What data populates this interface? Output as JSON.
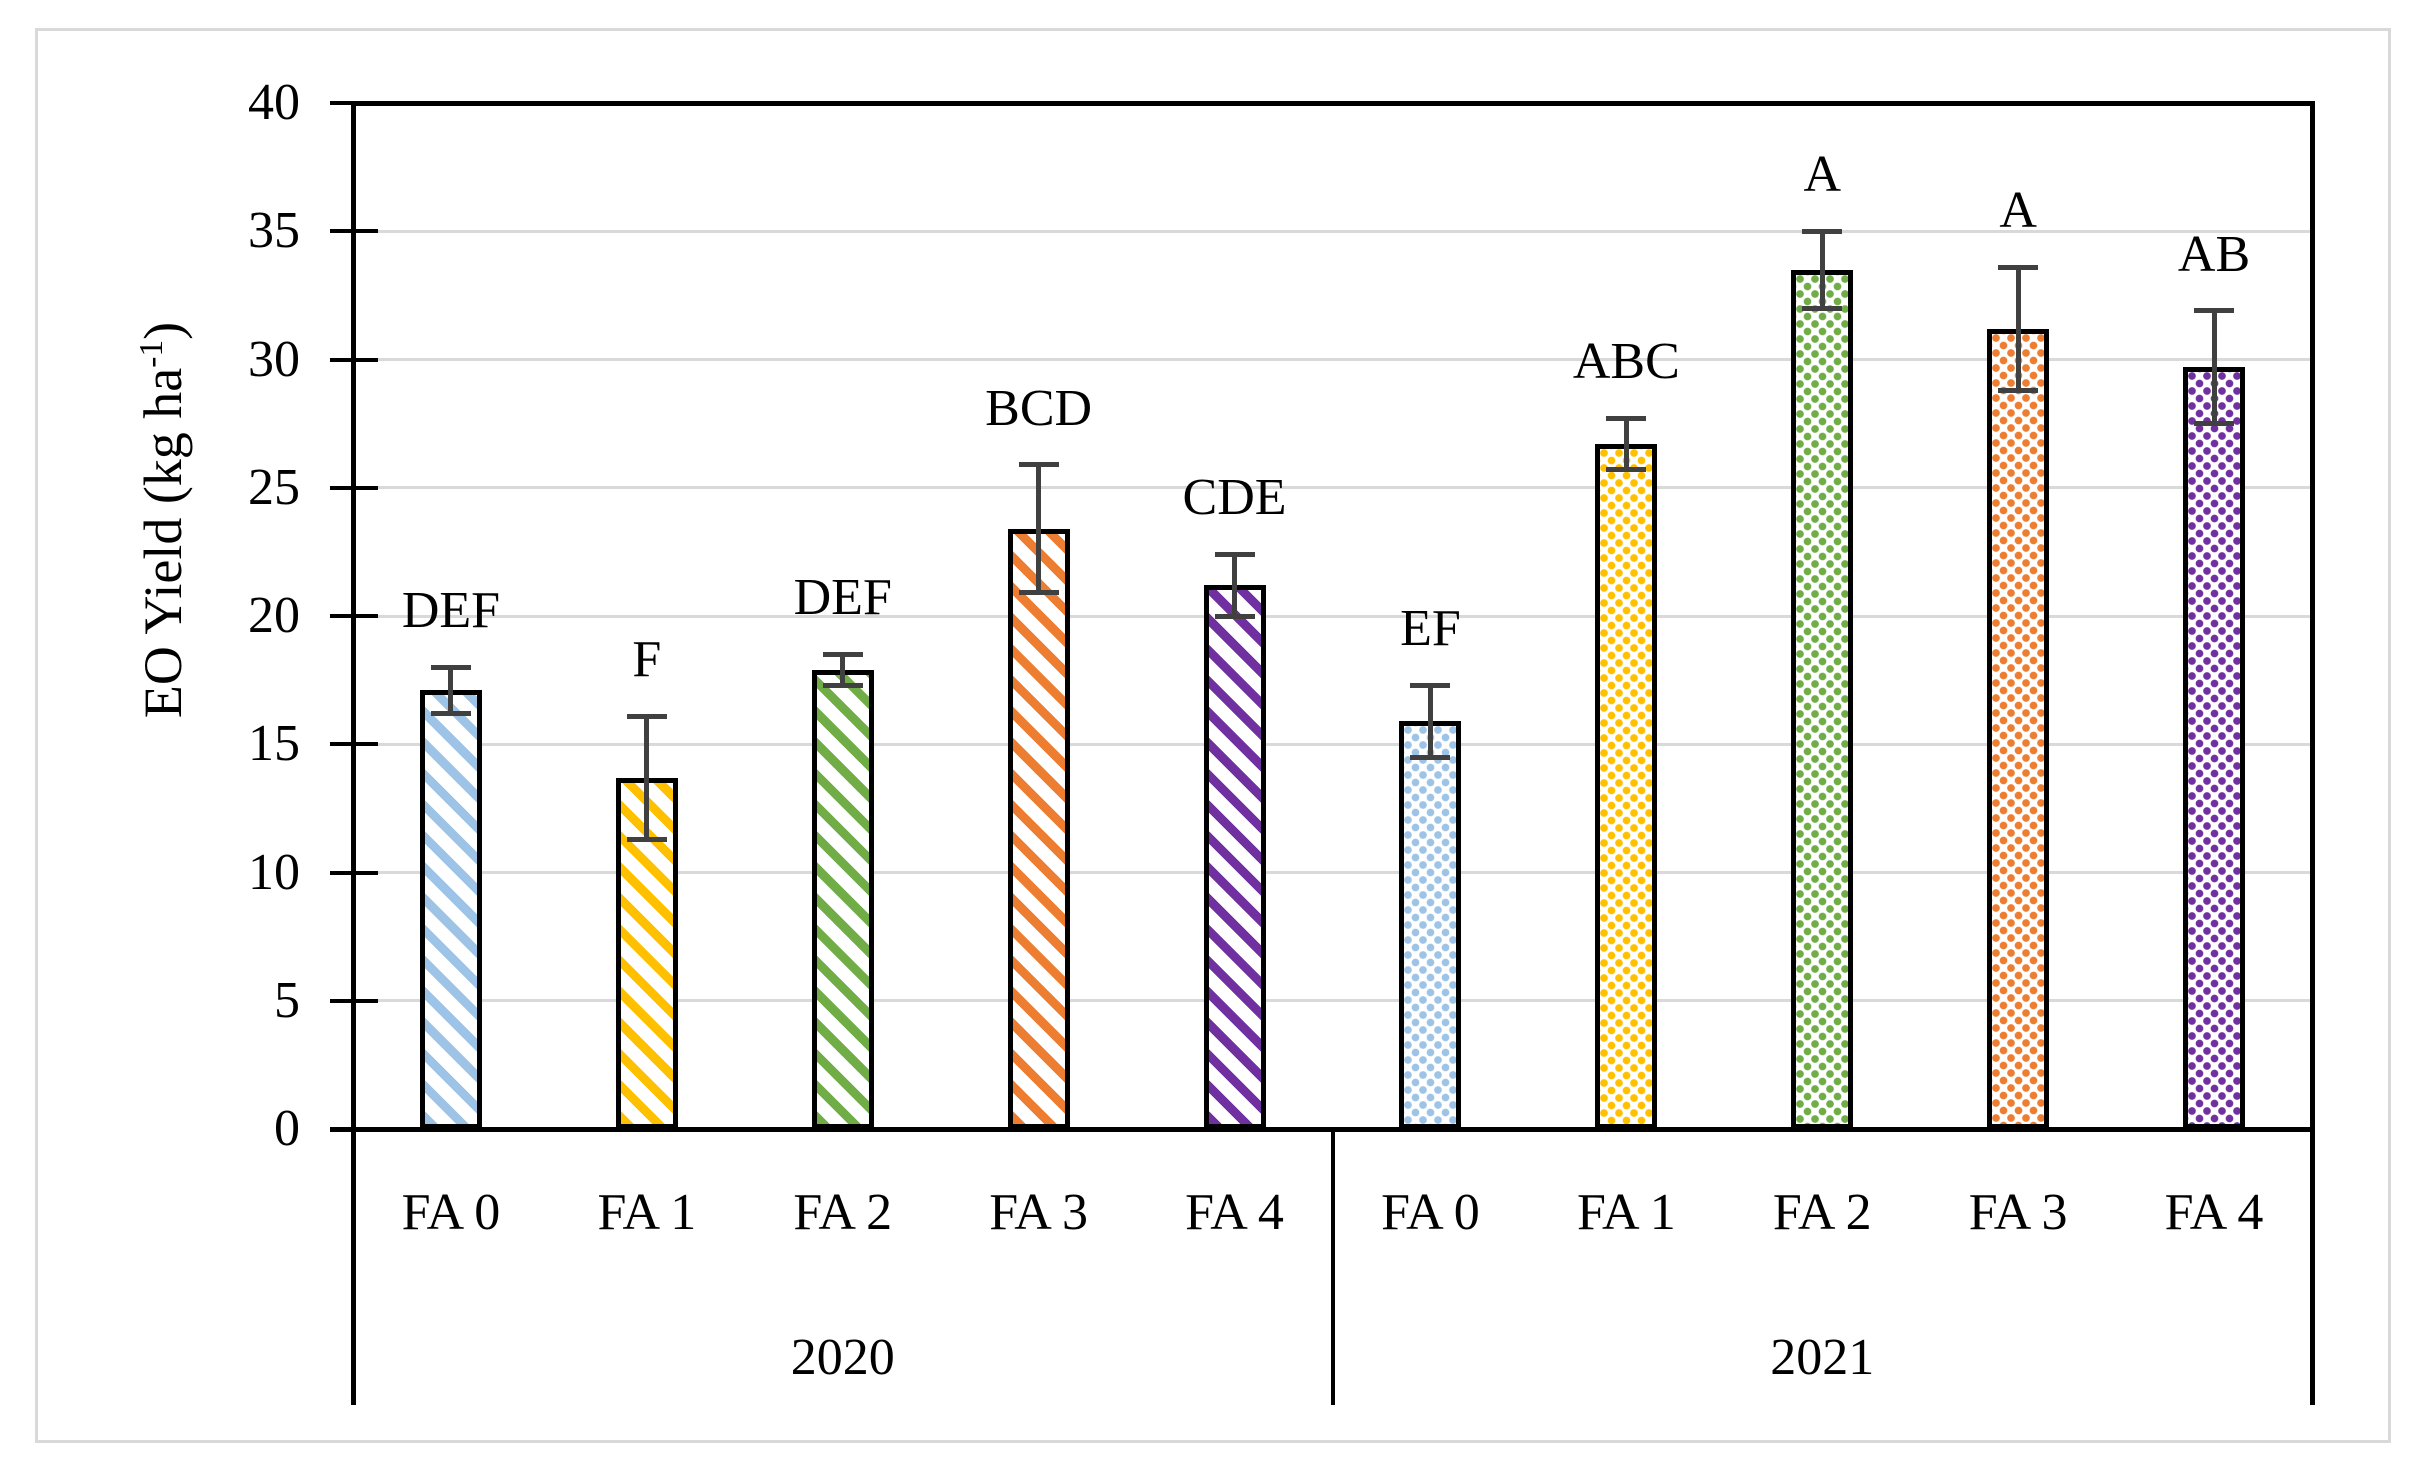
{
  "figure": {
    "background": "#ffffff",
    "border_color": "#d9d9d9"
  },
  "chart_data": {
    "type": "bar",
    "title": "",
    "xlabel": "",
    "ylabel": "EO Yield (kg ha-1)",
    "ylabel_parts": {
      "prefix": "EO Yield (kg ha",
      "superscript": "-1",
      "suffix": ")"
    },
    "ylim": [
      0,
      40
    ],
    "ytick_step": 5,
    "ytick_labels": [
      "0",
      "5",
      "10",
      "15",
      "20",
      "25",
      "30",
      "35",
      "40"
    ],
    "grid": true,
    "legend": "none",
    "gridline_color": "#d9d9d9",
    "axis_color": "#000000",
    "error_bar_color": "#404040",
    "bar_outline_color": "#000000",
    "categories": [
      "FA 0",
      "FA 1",
      "FA 2",
      "FA 3",
      "FA 4"
    ],
    "series_colors": [
      "#9dc3e6",
      "#ffc000",
      "#70ad47",
      "#ed7d31",
      "#7030a0"
    ],
    "groups": [
      {
        "label": "2020",
        "pattern": "diagonal-stripes",
        "bars": [
          {
            "category": "FA 0",
            "value": 17.1,
            "error": 0.9,
            "letter": "DEF",
            "color": "#9dc3e6"
          },
          {
            "category": "FA 1",
            "value": 13.7,
            "error": 2.4,
            "letter": "F",
            "color": "#ffc000"
          },
          {
            "category": "FA 2",
            "value": 17.9,
            "error": 0.6,
            "letter": "DEF",
            "color": "#70ad47"
          },
          {
            "category": "FA 3",
            "value": 23.4,
            "error": 2.5,
            "letter": "BCD",
            "color": "#ed7d31"
          },
          {
            "category": "FA 4",
            "value": 21.2,
            "error": 1.2,
            "letter": "CDE",
            "color": "#7030a0"
          }
        ]
      },
      {
        "label": "2021",
        "pattern": "dots",
        "bars": [
          {
            "category": "FA 0",
            "value": 15.9,
            "error": 1.4,
            "letter": "EF",
            "color": "#9dc3e6"
          },
          {
            "category": "FA 1",
            "value": 26.7,
            "error": 1.0,
            "letter": "ABC",
            "color": "#ffc000"
          },
          {
            "category": "FA 2",
            "value": 33.5,
            "error": 1.5,
            "letter": "A",
            "color": "#70ad47"
          },
          {
            "category": "FA 3",
            "value": 31.2,
            "error": 2.4,
            "letter": "A",
            "color": "#ed7d31"
          },
          {
            "category": "FA 4",
            "value": 29.7,
            "error": 2.2,
            "letter": "AB",
            "color": "#7030a0"
          }
        ]
      }
    ]
  }
}
